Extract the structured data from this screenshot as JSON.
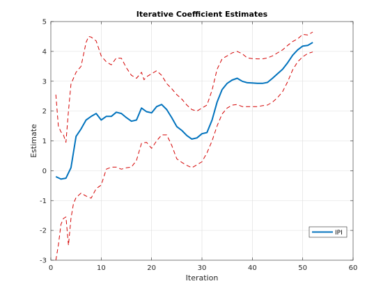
{
  "chart_data": {
    "type": "line",
    "title": "Iterative Coefficient Estimates",
    "xlabel": "Iteration",
    "ylabel": "Estimate",
    "xlim": [
      0,
      60
    ],
    "ylim": [
      -3,
      5
    ],
    "x_ticks": [
      0,
      10,
      20,
      30,
      40,
      50,
      60
    ],
    "y_ticks": [
      -3,
      -2,
      -1,
      0,
      1,
      2,
      3,
      4,
      5
    ],
    "grid": true,
    "legend_position": "bottom-right",
    "colors": {
      "estimate": "#0072BD",
      "bounds": "#D40000"
    },
    "series": [
      {
        "name": "IPI",
        "style": "solid",
        "x": [
          1,
          2,
          3,
          4,
          5,
          6,
          7,
          8,
          9,
          10,
          11,
          12,
          13,
          14,
          15,
          16,
          17,
          18,
          19,
          20,
          21,
          22,
          23,
          24,
          25,
          26,
          27,
          28,
          29,
          30,
          31,
          32,
          33,
          34,
          35,
          36,
          37,
          38,
          39,
          40,
          41,
          42,
          43,
          44,
          45,
          46,
          47,
          48,
          49,
          50,
          51,
          52
        ],
        "y": [
          -0.2,
          -0.28,
          -0.25,
          0.1,
          1.15,
          1.4,
          1.7,
          1.82,
          1.92,
          1.7,
          1.82,
          1.82,
          1.96,
          1.92,
          1.78,
          1.66,
          1.7,
          2.1,
          1.98,
          1.94,
          2.15,
          2.22,
          2.05,
          1.78,
          1.48,
          1.35,
          1.18,
          1.06,
          1.1,
          1.24,
          1.28,
          1.7,
          2.3,
          2.72,
          2.93,
          3.04,
          3.1,
          3.0,
          2.95,
          2.94,
          2.93,
          2.93,
          2.96,
          3.1,
          3.25,
          3.4,
          3.62,
          3.87,
          4.05,
          4.18,
          4.2,
          4.3
        ]
      },
      {
        "style": "dashed",
        "x": [
          1,
          1.5,
          2,
          2.5,
          3,
          3.5,
          4,
          4.5,
          5,
          6,
          7,
          7.5,
          8,
          9,
          10,
          11,
          12,
          13,
          14,
          15,
          16,
          17,
          18,
          18.5,
          19,
          20,
          21,
          22,
          23,
          24,
          25,
          26,
          27,
          28,
          29,
          30,
          31,
          32,
          33,
          34,
          35,
          36,
          37,
          38,
          39,
          40,
          41,
          42,
          43,
          44,
          45,
          46,
          47,
          48,
          49,
          50,
          51,
          52
        ],
        "y": [
          2.55,
          1.5,
          1.3,
          1.2,
          0.95,
          2.0,
          2.9,
          3.1,
          3.3,
          3.5,
          4.3,
          4.5,
          4.48,
          4.35,
          3.85,
          3.65,
          3.55,
          3.78,
          3.77,
          3.45,
          3.2,
          3.1,
          3.3,
          3.05,
          3.15,
          3.25,
          3.35,
          3.2,
          2.92,
          2.75,
          2.55,
          2.4,
          2.2,
          2.05,
          2.0,
          2.1,
          2.2,
          2.7,
          3.4,
          3.75,
          3.85,
          3.95,
          4.0,
          3.92,
          3.78,
          3.76,
          3.75,
          3.75,
          3.78,
          3.85,
          3.95,
          4.05,
          4.2,
          4.33,
          4.42,
          4.57,
          4.55,
          4.65
        ]
      },
      {
        "style": "dashed",
        "x": [
          1,
          1.5,
          2,
          2.5,
          3,
          3.5,
          4,
          4.5,
          5,
          6,
          7,
          8,
          9,
          10,
          11,
          12,
          13,
          14,
          15,
          16,
          17,
          18,
          19,
          20,
          21,
          22,
          23,
          24,
          25,
          26,
          27,
          28,
          29,
          30,
          31,
          32,
          33,
          34,
          35,
          36,
          37,
          38,
          39,
          40,
          41,
          42,
          43,
          44,
          45,
          46,
          47,
          48,
          49,
          50,
          51,
          52
        ],
        "y": [
          -3.0,
          -2.5,
          -1.8,
          -1.6,
          -1.55,
          -2.5,
          -1.6,
          -1.1,
          -0.9,
          -0.75,
          -0.85,
          -0.92,
          -0.6,
          -0.48,
          0.05,
          0.12,
          0.12,
          0.05,
          0.1,
          0.12,
          0.35,
          0.92,
          0.95,
          0.75,
          1.0,
          1.2,
          1.2,
          0.85,
          0.4,
          0.28,
          0.18,
          0.1,
          0.2,
          0.3,
          0.6,
          1.0,
          1.5,
          1.9,
          2.1,
          2.2,
          2.22,
          2.15,
          2.15,
          2.15,
          2.15,
          2.18,
          2.2,
          2.3,
          2.45,
          2.65,
          2.98,
          3.38,
          3.65,
          3.82,
          3.93,
          3.98
        ]
      }
    ]
  }
}
